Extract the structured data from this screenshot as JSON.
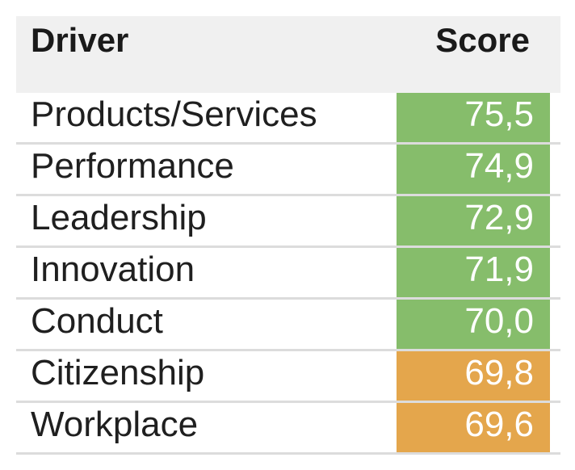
{
  "table": {
    "header": {
      "driver": "Driver",
      "score": "Score"
    },
    "rows": [
      {
        "driver": "Products/Services",
        "score": "75,5",
        "color": "#86bd6b"
      },
      {
        "driver": "Performance",
        "score": "74,9",
        "color": "#86bd6b"
      },
      {
        "driver": "Leadership",
        "score": "72,9",
        "color": "#86bd6b"
      },
      {
        "driver": "Innovation",
        "score": "71,9",
        "color": "#86bd6b"
      },
      {
        "driver": "Conduct",
        "score": "70,0",
        "color": "#86bd6b"
      },
      {
        "driver": "Citizenship",
        "score": "69,8",
        "color": "#e4a64c"
      },
      {
        "driver": "Workplace",
        "score": "69,6",
        "color": "#e4a64c"
      }
    ]
  }
}
